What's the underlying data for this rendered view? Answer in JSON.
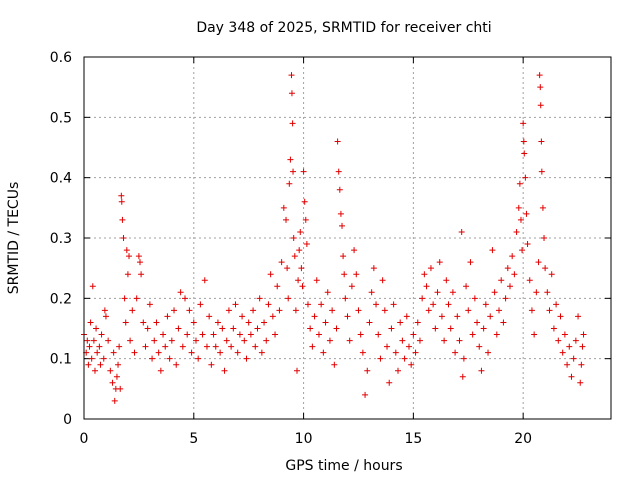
{
  "chart_data": {
    "type": "scatter",
    "title": "Day 348 of 2025, SRMTID for receiver chti",
    "xlabel": "GPS time / hours",
    "ylabel": "SRMTID / TECUs",
    "xlim": [
      0,
      24
    ],
    "ylim": [
      0,
      0.6
    ],
    "x_ticks": [
      0,
      5,
      10,
      15,
      20
    ],
    "x_tick_labels": [
      "0",
      "5",
      "10",
      "15",
      "20"
    ],
    "y_ticks": [
      0,
      0.1,
      0.2,
      0.3,
      0.4,
      0.5,
      0.6
    ],
    "y_tick_labels": [
      "0",
      "0.1",
      "0.2",
      "0.3",
      "0.4",
      "0.5",
      "0.6"
    ],
    "grid": true,
    "marker": "+",
    "color": "#e00000",
    "series": [
      {
        "name": "SRMTID",
        "points": [
          [
            0.0,
            0.14
          ],
          [
            0.1,
            0.11
          ],
          [
            0.15,
            0.13
          ],
          [
            0.2,
            0.09
          ],
          [
            0.25,
            0.12
          ],
          [
            0.3,
            0.16
          ],
          [
            0.35,
            0.1
          ],
          [
            0.4,
            0.22
          ],
          [
            0.45,
            0.13
          ],
          [
            0.5,
            0.08
          ],
          [
            0.55,
            0.15
          ],
          [
            0.6,
            0.11
          ],
          [
            0.7,
            0.12
          ],
          [
            0.75,
            0.09
          ],
          [
            0.8,
            0.14
          ],
          [
            0.9,
            0.1
          ],
          [
            0.95,
            0.18
          ],
          [
            1.0,
            0.17
          ],
          [
            1.1,
            0.13
          ],
          [
            1.2,
            0.08
          ],
          [
            1.3,
            0.06
          ],
          [
            1.35,
            0.11
          ],
          [
            1.4,
            0.03
          ],
          [
            1.45,
            0.05
          ],
          [
            1.5,
            0.07
          ],
          [
            1.55,
            0.09
          ],
          [
            1.6,
            0.12
          ],
          [
            1.65,
            0.05
          ],
          [
            1.7,
            0.37
          ],
          [
            1.72,
            0.36
          ],
          [
            1.75,
            0.33
          ],
          [
            1.8,
            0.3
          ],
          [
            1.85,
            0.2
          ],
          [
            1.9,
            0.16
          ],
          [
            1.95,
            0.28
          ],
          [
            2.0,
            0.24
          ],
          [
            2.05,
            0.27
          ],
          [
            2.1,
            0.13
          ],
          [
            2.2,
            0.18
          ],
          [
            2.3,
            0.11
          ],
          [
            2.4,
            0.2
          ],
          [
            2.5,
            0.27
          ],
          [
            2.55,
            0.26
          ],
          [
            2.6,
            0.24
          ],
          [
            2.7,
            0.16
          ],
          [
            2.8,
            0.12
          ],
          [
            2.9,
            0.15
          ],
          [
            3.0,
            0.19
          ],
          [
            3.1,
            0.1
          ],
          [
            3.2,
            0.13
          ],
          [
            3.3,
            0.16
          ],
          [
            3.4,
            0.11
          ],
          [
            3.5,
            0.08
          ],
          [
            3.6,
            0.14
          ],
          [
            3.7,
            0.12
          ],
          [
            3.8,
            0.17
          ],
          [
            3.9,
            0.1
          ],
          [
            4.0,
            0.13
          ],
          [
            4.1,
            0.18
          ],
          [
            4.2,
            0.09
          ],
          [
            4.3,
            0.15
          ],
          [
            4.4,
            0.21
          ],
          [
            4.5,
            0.12
          ],
          [
            4.6,
            0.2
          ],
          [
            4.7,
            0.14
          ],
          [
            4.8,
            0.18
          ],
          [
            4.9,
            0.11
          ],
          [
            5.0,
            0.16
          ],
          [
            5.1,
            0.13
          ],
          [
            5.2,
            0.1
          ],
          [
            5.3,
            0.19
          ],
          [
            5.4,
            0.14
          ],
          [
            5.5,
            0.23
          ],
          [
            5.6,
            0.12
          ],
          [
            5.7,
            0.17
          ],
          [
            5.8,
            0.09
          ],
          [
            5.9,
            0.14
          ],
          [
            6.0,
            0.12
          ],
          [
            6.1,
            0.16
          ],
          [
            6.2,
            0.11
          ],
          [
            6.3,
            0.15
          ],
          [
            6.4,
            0.08
          ],
          [
            6.5,
            0.13
          ],
          [
            6.6,
            0.18
          ],
          [
            6.7,
            0.12
          ],
          [
            6.8,
            0.15
          ],
          [
            6.9,
            0.19
          ],
          [
            7.0,
            0.11
          ],
          [
            7.1,
            0.14
          ],
          [
            7.2,
            0.17
          ],
          [
            7.3,
            0.13
          ],
          [
            7.4,
            0.1
          ],
          [
            7.5,
            0.16
          ],
          [
            7.6,
            0.14
          ],
          [
            7.7,
            0.18
          ],
          [
            7.8,
            0.12
          ],
          [
            7.9,
            0.15
          ],
          [
            8.0,
            0.2
          ],
          [
            8.1,
            0.11
          ],
          [
            8.2,
            0.16
          ],
          [
            8.3,
            0.13
          ],
          [
            8.4,
            0.19
          ],
          [
            8.5,
            0.24
          ],
          [
            8.6,
            0.17
          ],
          [
            8.7,
            0.14
          ],
          [
            8.8,
            0.22
          ],
          [
            8.9,
            0.18
          ],
          [
            9.0,
            0.26
          ],
          [
            9.1,
            0.35
          ],
          [
            9.2,
            0.33
          ],
          [
            9.25,
            0.25
          ],
          [
            9.3,
            0.2
          ],
          [
            9.35,
            0.39
          ],
          [
            9.4,
            0.43
          ],
          [
            9.45,
            0.57
          ],
          [
            9.47,
            0.54
          ],
          [
            9.5,
            0.49
          ],
          [
            9.52,
            0.41
          ],
          [
            9.55,
            0.3
          ],
          [
            9.6,
            0.27
          ],
          [
            9.65,
            0.18
          ],
          [
            9.7,
            0.08
          ],
          [
            9.75,
            0.23
          ],
          [
            9.8,
            0.28
          ],
          [
            9.85,
            0.31
          ],
          [
            9.9,
            0.25
          ],
          [
            9.95,
            0.22
          ],
          [
            10.0,
            0.41
          ],
          [
            10.05,
            0.36
          ],
          [
            10.1,
            0.33
          ],
          [
            10.15,
            0.29
          ],
          [
            10.2,
            0.19
          ],
          [
            10.3,
            0.15
          ],
          [
            10.4,
            0.12
          ],
          [
            10.5,
            0.17
          ],
          [
            10.6,
            0.23
          ],
          [
            10.7,
            0.14
          ],
          [
            10.8,
            0.19
          ],
          [
            10.9,
            0.11
          ],
          [
            11.0,
            0.16
          ],
          [
            11.1,
            0.21
          ],
          [
            11.2,
            0.13
          ],
          [
            11.3,
            0.18
          ],
          [
            11.4,
            0.09
          ],
          [
            11.5,
            0.15
          ],
          [
            11.55,
            0.46
          ],
          [
            11.6,
            0.41
          ],
          [
            11.65,
            0.38
          ],
          [
            11.7,
            0.34
          ],
          [
            11.75,
            0.32
          ],
          [
            11.8,
            0.27
          ],
          [
            11.85,
            0.24
          ],
          [
            11.9,
            0.2
          ],
          [
            12.0,
            0.17
          ],
          [
            12.1,
            0.13
          ],
          [
            12.2,
            0.22
          ],
          [
            12.3,
            0.28
          ],
          [
            12.4,
            0.24
          ],
          [
            12.5,
            0.18
          ],
          [
            12.6,
            0.14
          ],
          [
            12.7,
            0.11
          ],
          [
            12.8,
            0.04
          ],
          [
            12.9,
            0.08
          ],
          [
            13.0,
            0.16
          ],
          [
            13.1,
            0.21
          ],
          [
            13.2,
            0.25
          ],
          [
            13.3,
            0.19
          ],
          [
            13.4,
            0.14
          ],
          [
            13.5,
            0.1
          ],
          [
            13.6,
            0.23
          ],
          [
            13.7,
            0.18
          ],
          [
            13.8,
            0.12
          ],
          [
            13.9,
            0.06
          ],
          [
            14.0,
            0.15
          ],
          [
            14.1,
            0.19
          ],
          [
            14.2,
            0.11
          ],
          [
            14.3,
            0.08
          ],
          [
            14.4,
            0.16
          ],
          [
            14.5,
            0.13
          ],
          [
            14.6,
            0.1
          ],
          [
            14.7,
            0.17
          ],
          [
            14.8,
            0.12
          ],
          [
            14.9,
            0.09
          ],
          [
            15.0,
            0.14
          ],
          [
            15.1,
            0.11
          ],
          [
            15.2,
            0.16
          ],
          [
            15.3,
            0.13
          ],
          [
            15.4,
            0.2
          ],
          [
            15.5,
            0.24
          ],
          [
            15.6,
            0.22
          ],
          [
            15.7,
            0.18
          ],
          [
            15.8,
            0.25
          ],
          [
            15.9,
            0.19
          ],
          [
            16.0,
            0.15
          ],
          [
            16.1,
            0.21
          ],
          [
            16.2,
            0.26
          ],
          [
            16.3,
            0.17
          ],
          [
            16.4,
            0.13
          ],
          [
            16.5,
            0.23
          ],
          [
            16.6,
            0.19
          ],
          [
            16.7,
            0.15
          ],
          [
            16.8,
            0.21
          ],
          [
            16.9,
            0.11
          ],
          [
            17.0,
            0.17
          ],
          [
            17.1,
            0.13
          ],
          [
            17.2,
            0.31
          ],
          [
            17.25,
            0.07
          ],
          [
            17.3,
            0.1
          ],
          [
            17.4,
            0.22
          ],
          [
            17.5,
            0.18
          ],
          [
            17.6,
            0.26
          ],
          [
            17.7,
            0.14
          ],
          [
            17.8,
            0.2
          ],
          [
            17.9,
            0.16
          ],
          [
            18.0,
            0.12
          ],
          [
            18.1,
            0.08
          ],
          [
            18.2,
            0.15
          ],
          [
            18.3,
            0.19
          ],
          [
            18.4,
            0.11
          ],
          [
            18.5,
            0.17
          ],
          [
            18.6,
            0.28
          ],
          [
            18.7,
            0.21
          ],
          [
            18.8,
            0.14
          ],
          [
            18.9,
            0.18
          ],
          [
            19.0,
            0.23
          ],
          [
            19.1,
            0.16
          ],
          [
            19.2,
            0.2
          ],
          [
            19.3,
            0.25
          ],
          [
            19.4,
            0.22
          ],
          [
            19.5,
            0.27
          ],
          [
            19.6,
            0.24
          ],
          [
            19.7,
            0.31
          ],
          [
            19.8,
            0.35
          ],
          [
            19.85,
            0.39
          ],
          [
            19.9,
            0.33
          ],
          [
            19.95,
            0.28
          ],
          [
            20.0,
            0.49
          ],
          [
            20.03,
            0.46
          ],
          [
            20.05,
            0.44
          ],
          [
            20.1,
            0.4
          ],
          [
            20.15,
            0.34
          ],
          [
            20.2,
            0.29
          ],
          [
            20.3,
            0.23
          ],
          [
            20.4,
            0.18
          ],
          [
            20.5,
            0.14
          ],
          [
            20.6,
            0.21
          ],
          [
            20.7,
            0.26
          ],
          [
            20.75,
            0.57
          ],
          [
            20.78,
            0.55
          ],
          [
            20.8,
            0.52
          ],
          [
            20.83,
            0.46
          ],
          [
            20.85,
            0.41
          ],
          [
            20.9,
            0.35
          ],
          [
            20.95,
            0.3
          ],
          [
            21.0,
            0.25
          ],
          [
            21.1,
            0.21
          ],
          [
            21.2,
            0.18
          ],
          [
            21.3,
            0.24
          ],
          [
            21.4,
            0.15
          ],
          [
            21.5,
            0.19
          ],
          [
            21.6,
            0.13
          ],
          [
            21.7,
            0.17
          ],
          [
            21.8,
            0.11
          ],
          [
            21.9,
            0.14
          ],
          [
            22.0,
            0.09
          ],
          [
            22.1,
            0.12
          ],
          [
            22.2,
            0.07
          ],
          [
            22.3,
            0.1
          ],
          [
            22.4,
            0.13
          ],
          [
            22.5,
            0.17
          ],
          [
            22.6,
            0.06
          ],
          [
            22.65,
            0.09
          ],
          [
            22.7,
            0.12
          ],
          [
            22.75,
            0.14
          ]
        ]
      }
    ]
  }
}
